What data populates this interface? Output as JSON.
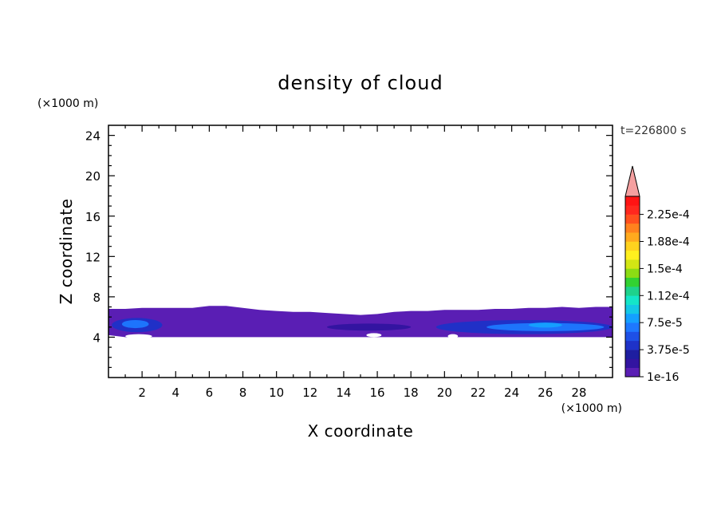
{
  "chart_data": {
    "type": "heatmap",
    "title": "density of cloud",
    "xlabel": "X coordinate",
    "ylabel": "Z coordinate",
    "x_unit": "(×1000 m)",
    "y_unit": "(×1000 m)",
    "time_label": "t=226800 s",
    "xlim": [
      0,
      30
    ],
    "ylim": [
      0,
      25
    ],
    "x_ticks": [
      "2",
      "4",
      "6",
      "8",
      "10",
      "12",
      "14",
      "16",
      "18",
      "20",
      "22",
      "24",
      "26",
      "28"
    ],
    "y_ticks": [
      "4",
      "8",
      "12",
      "16",
      "20",
      "24"
    ],
    "colorbar": {
      "labels": [
        "1e-16",
        "3.75e-5",
        "7.5e-5",
        "1.12e-4",
        "1.5e-4",
        "1.88e-4",
        "2.25e-4"
      ],
      "colors": [
        "#5a1eb4",
        "#3214a0",
        "#1e1ea0",
        "#1e32c8",
        "#1e50e6",
        "#1e78ff",
        "#14a0ff",
        "#14c8e6",
        "#14e6c8",
        "#1ed28c",
        "#32d232",
        "#8cdc14",
        "#d2e614",
        "#fff01e",
        "#ffd21e",
        "#ffaa1e",
        "#ff821e",
        "#ff501e",
        "#ff281e",
        "#ff1414"
      ],
      "extend_color": "#f5a0a0"
    },
    "cloud_layer": {
      "base": [
        4.2,
        4.0,
        4.0,
        4.0,
        4.0,
        4.0,
        4.0,
        4.0,
        4.0,
        4.0,
        4.0,
        4.0,
        4.0,
        4.0,
        4.0,
        4.0,
        4.0,
        4.0,
        4.0,
        4.0,
        4.0,
        4.0,
        4.0,
        4.0,
        4.0,
        4.0,
        4.0,
        4.0,
        4.0,
        4.0,
        4.0
      ],
      "top": [
        6.8,
        6.8,
        6.9,
        6.9,
        6.9,
        6.9,
        7.1,
        7.1,
        6.9,
        6.7,
        6.6,
        6.5,
        6.5,
        6.4,
        6.3,
        6.2,
        6.3,
        6.5,
        6.6,
        6.6,
        6.7,
        6.7,
        6.7,
        6.8,
        6.8,
        6.9,
        6.9,
        7.0,
        6.9,
        7.0,
        7.0
      ]
    }
  }
}
